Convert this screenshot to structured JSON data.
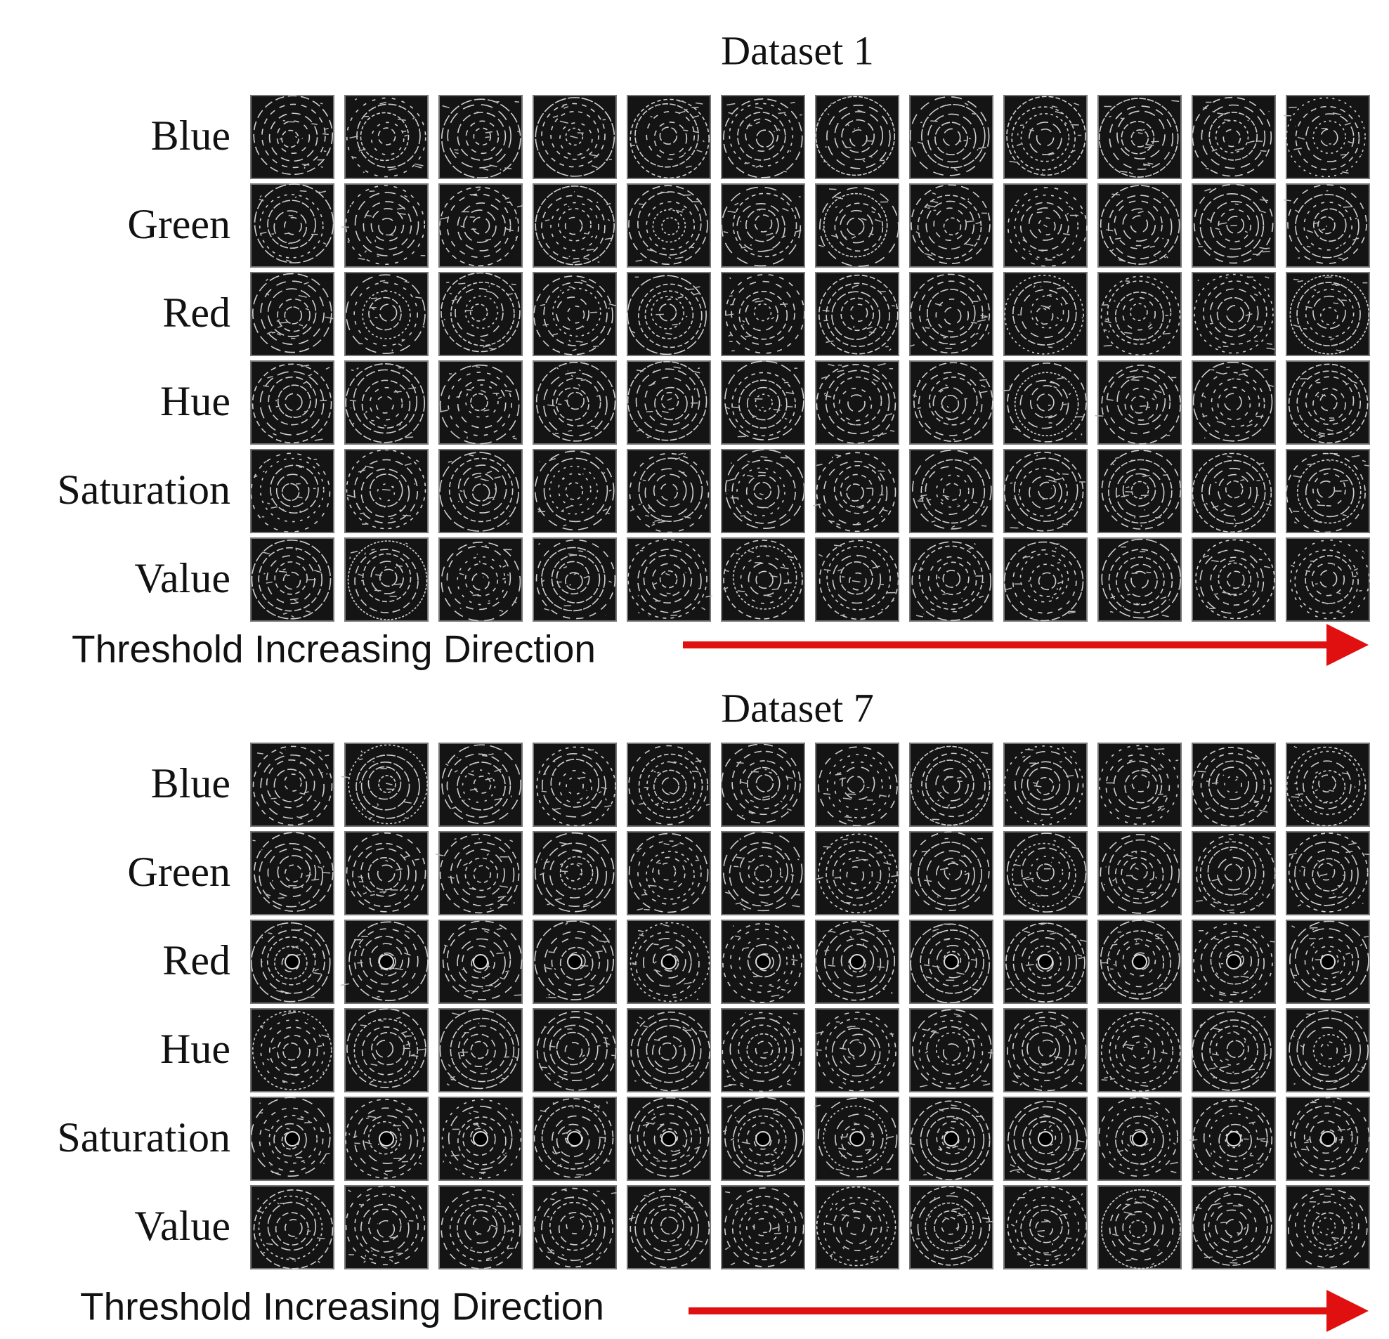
{
  "panels": [
    {
      "title": "Dataset 1",
      "rows": [
        "Blue",
        "Green",
        "Red",
        "Hue",
        "Saturation",
        "Value"
      ],
      "caption": "Threshold Increasing Direction"
    },
    {
      "title": "Dataset 7",
      "rows": [
        "Blue",
        "Green",
        "Red",
        "Hue",
        "Saturation",
        "Value"
      ],
      "caption": "Threshold Increasing Direction"
    }
  ]
}
